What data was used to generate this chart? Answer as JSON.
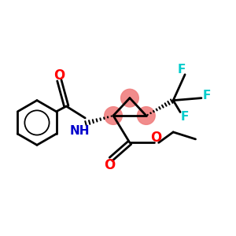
{
  "background_color": "#ffffff",
  "bond_color": "#000000",
  "highlight_color": "#f08080",
  "N_color": "#0000cc",
  "O_color": "#ff0000",
  "F_color": "#00cccc",
  "lw": 2.0,
  "fig_w": 3.0,
  "fig_h": 3.0,
  "dpi": 100,
  "xlim": [
    0,
    10
  ],
  "ylim": [
    0,
    10
  ]
}
